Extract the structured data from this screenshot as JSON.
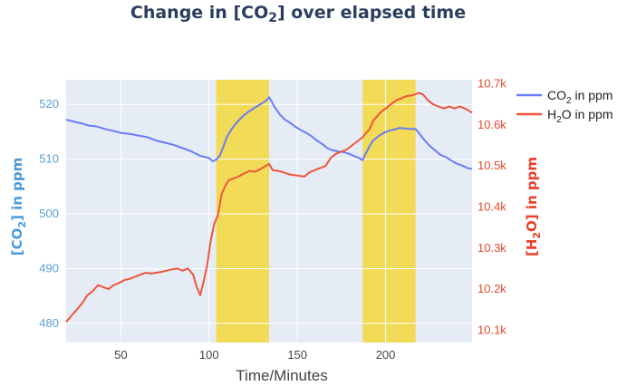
{
  "chart_data": {
    "type": "line",
    "title_main": "Change in ",
    "title_chem": "[CO",
    "title_sub": "2",
    "title_close": "]",
    "title_tail": " over elapsed time",
    "xlabel": "Time/Minutes",
    "ylabel_left": {
      "pre": "[CO",
      "sub": "2",
      "post": "] in ppm"
    },
    "ylabel_right": {
      "pre": "[H",
      "sub": "2",
      "post": "O] in ppm"
    },
    "xlim": [
      19,
      249
    ],
    "ylim_left": [
      476.5,
      524.5
    ],
    "ylim_right": [
      10070,
      10710
    ],
    "x_ticks": [
      {
        "value": 50,
        "label": "50"
      },
      {
        "value": 100,
        "label": "100"
      },
      {
        "value": 150,
        "label": "150"
      },
      {
        "value": 200,
        "label": "200"
      }
    ],
    "y_ticks_left": [
      {
        "value": 480,
        "label": "480"
      },
      {
        "value": 490,
        "label": "490"
      },
      {
        "value": 500,
        "label": "500"
      },
      {
        "value": 510,
        "label": "510"
      },
      {
        "value": 520,
        "label": "520"
      }
    ],
    "y_ticks_right": [
      {
        "value": 10100,
        "label": "10.1k"
      },
      {
        "value": 10200,
        "label": "10.2k"
      },
      {
        "value": 10300,
        "label": "10.3k"
      },
      {
        "value": 10400,
        "label": "10.4k"
      },
      {
        "value": 10500,
        "label": "10.5k"
      },
      {
        "value": 10600,
        "label": "10.6k"
      },
      {
        "value": 10700,
        "label": "10.7k"
      }
    ],
    "highlight_bands": [
      [
        104,
        134
      ],
      [
        187,
        217
      ]
    ],
    "highlight_color": "#f5d83a",
    "grid": true,
    "legend_position": "top-right",
    "series": [
      {
        "legend_pre": "CO",
        "legend_sub": "2",
        "legend_post": " in ppm",
        "axis": "left",
        "color": "#6b7cf5",
        "x": [
          19,
          24,
          28,
          32,
          36,
          40,
          45,
          50,
          55,
          60,
          65,
          70,
          75,
          80,
          85,
          90,
          95,
          100,
          102,
          104,
          106,
          108,
          110,
          113,
          116,
          119,
          122,
          125,
          128,
          131,
          133,
          134,
          135,
          137,
          140,
          143,
          146,
          149,
          152,
          155,
          158,
          161,
          164,
          167,
          170,
          173,
          176,
          179,
          182,
          185,
          187,
          189,
          191,
          193,
          196,
          199,
          202,
          205,
          208,
          211,
          214,
          217,
          219,
          222,
          225,
          228,
          231,
          234,
          237,
          240,
          243,
          246,
          249
        ],
        "y": [
          517.2,
          516.8,
          516.5,
          516.1,
          516.0,
          515.6,
          515.2,
          514.8,
          514.6,
          514.3,
          514.0,
          513.4,
          513.0,
          512.6,
          512.0,
          511.4,
          510.6,
          510.2,
          509.6,
          509.9,
          510.6,
          512.2,
          514.0,
          515.6,
          516.8,
          517.8,
          518.6,
          519.2,
          519.8,
          520.4,
          520.9,
          521.3,
          520.8,
          519.6,
          518.2,
          517.2,
          516.6,
          515.9,
          515.3,
          514.8,
          514.2,
          513.4,
          512.8,
          512.0,
          511.6,
          511.4,
          511.3,
          511.0,
          510.6,
          510.2,
          509.8,
          511.2,
          512.4,
          513.4,
          514.2,
          514.8,
          515.2,
          515.4,
          515.7,
          515.6,
          515.5,
          515.5,
          514.7,
          513.5,
          512.4,
          511.6,
          510.8,
          510.4,
          509.8,
          509.2,
          508.9,
          508.4,
          508.2
        ]
      },
      {
        "legend_pre": "H",
        "legend_sub": "2",
        "legend_post": "O in ppm",
        "axis": "right",
        "color": "#ef553b",
        "x": [
          19,
          22,
          25,
          28,
          31,
          34,
          37,
          40,
          43,
          46,
          49,
          52,
          55,
          58,
          61,
          64,
          67,
          70,
          73,
          76,
          79,
          82,
          85,
          88,
          91,
          93,
          95,
          97,
          99,
          101,
          103,
          105,
          107,
          109,
          111,
          114,
          117,
          120,
          123,
          126,
          129,
          132,
          134,
          136,
          139,
          142,
          145,
          148,
          151,
          154,
          157,
          160,
          163,
          166,
          169,
          172,
          175,
          178,
          181,
          184,
          187,
          189,
          191,
          193,
          195,
          197,
          200,
          203,
          206,
          209,
          212,
          215,
          217,
          219,
          221,
          224,
          227,
          230,
          233,
          236,
          239,
          242,
          245,
          249
        ],
        "y": [
          10120,
          10135,
          10150,
          10165,
          10185,
          10195,
          10210,
          10205,
          10200,
          10210,
          10215,
          10222,
          10225,
          10230,
          10235,
          10240,
          10238,
          10240,
          10242,
          10245,
          10248,
          10250,
          10245,
          10250,
          10235,
          10205,
          10185,
          10220,
          10260,
          10320,
          10360,
          10380,
          10430,
          10450,
          10465,
          10470,
          10475,
          10482,
          10488,
          10486,
          10492,
          10500,
          10505,
          10490,
          10488,
          10485,
          10480,
          10478,
          10476,
          10474,
          10485,
          10490,
          10495,
          10500,
          10520,
          10530,
          10535,
          10540,
          10550,
          10560,
          10570,
          10580,
          10590,
          10610,
          10620,
          10630,
          10640,
          10650,
          10660,
          10665,
          10670,
          10672,
          10675,
          10678,
          10675,
          10660,
          10650,
          10645,
          10640,
          10645,
          10640,
          10645,
          10640,
          10630
        ]
      }
    ]
  }
}
